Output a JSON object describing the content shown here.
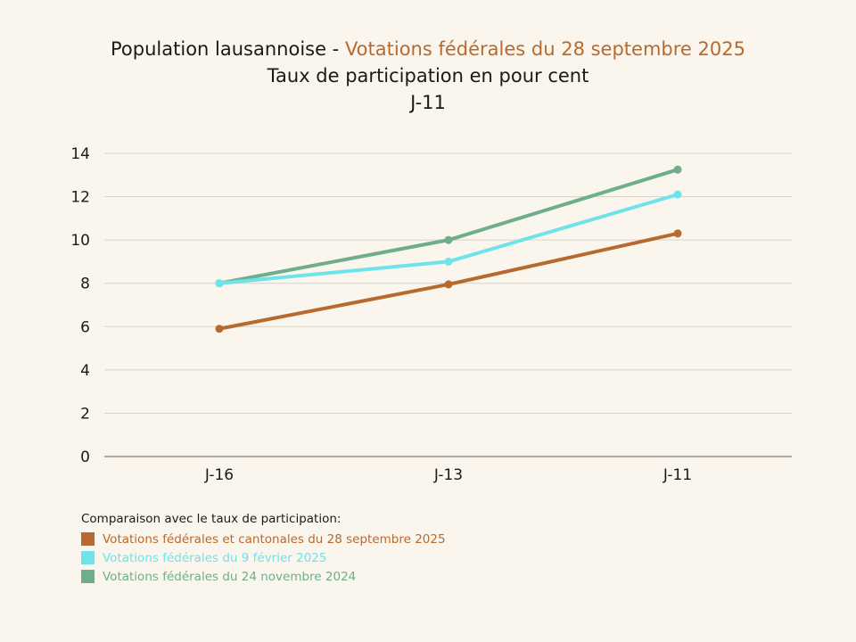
{
  "header": {
    "title_main": "Population lausannoise - ",
    "title_accent": "Votations fédérales du 28 septembre 2025",
    "subtitle": "Taux de participation en pour cent",
    "subtitle2": "J-11"
  },
  "colors": {
    "accent": "#b8692e",
    "grid": "#d8d2c4",
    "axis": "#9a9284",
    "background": "#faf6ee"
  },
  "chart_data": {
    "type": "line",
    "categories": [
      "J-16",
      "J-13",
      "J-11"
    ],
    "ylim": [
      0,
      14
    ],
    "yticks": [
      0,
      2,
      4,
      6,
      8,
      10,
      12,
      14
    ],
    "grid": true,
    "legend_position": "bottom-left",
    "series": [
      {
        "name": "Votations fédérales et cantonales du 28 septembre 2025",
        "color": "#b8692e",
        "values": [
          5.9,
          7.95,
          10.3
        ]
      },
      {
        "name": "Votations fédérales du 9 février 2025",
        "color": "#6ee3ea",
        "values": [
          8.0,
          9.0,
          12.1
        ]
      },
      {
        "name": "Votations fédérales du 24 novembre 2024",
        "color": "#6fae8a",
        "values": [
          8.0,
          10.0,
          13.25
        ]
      }
    ]
  },
  "legend": {
    "heading": "Comparaison avec le taux de participation:"
  }
}
